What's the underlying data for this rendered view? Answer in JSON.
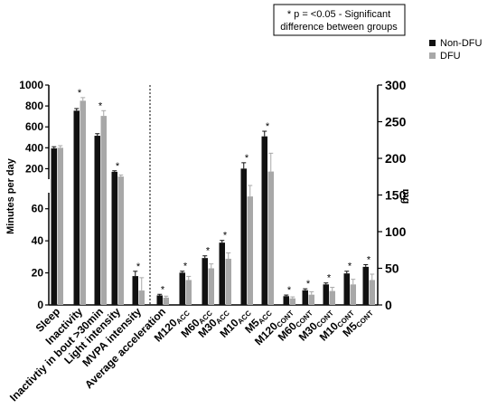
{
  "chart_data": {
    "type": "bar",
    "note_lines": [
      "* p = <0.05 - Significant",
      "difference between groups"
    ],
    "legend": [
      "Non-DFU",
      "DFU"
    ],
    "colors": {
      "Non-DFU": "#111111",
      "DFU": "#a8a8a8"
    },
    "legend_placement": "top-right",
    "ylabel_left": "Minutes per day",
    "ylabel_right": "mg",
    "left_axis": {
      "broken": true,
      "upper_ticks": [
        "200",
        "400",
        "600",
        "800",
        "1000"
      ],
      "lower_ticks": [
        "0",
        "20",
        "40",
        "60"
      ],
      "upper_range": [
        100,
        1000
      ],
      "lower_range": [
        0,
        70
      ]
    },
    "right_axis": {
      "ticks": [
        "0",
        "50",
        "100",
        "150",
        "200",
        "250",
        "300"
      ],
      "range": [
        0,
        300
      ]
    },
    "left_series": {
      "categories": [
        "Sleep",
        "Inactivity",
        "Inactivtiy in bout >30min",
        "Light intensity",
        "MVPA intensity"
      ],
      "non_dfu": [
        395,
        755,
        515,
        170,
        18
      ],
      "dfu": [
        400,
        850,
        705,
        125,
        9
      ],
      "non_dfu_err": [
        15,
        20,
        20,
        10,
        3
      ],
      "dfu_err": [
        20,
        30,
        50,
        15,
        8
      ],
      "significant": [
        false,
        true,
        true,
        true,
        true
      ]
    },
    "right_series": {
      "categories": [
        {
          "main": "Average acceleration",
          "sub": ""
        },
        {
          "main": "M120",
          "sub": "ACC"
        },
        {
          "main": "M60",
          "sub": "ACC"
        },
        {
          "main": "M30",
          "sub": "ACC"
        },
        {
          "main": "M10",
          "sub": "ACC"
        },
        {
          "main": "M5",
          "sub": "ACC"
        },
        {
          "main": "M120",
          "sub": "CONT"
        },
        {
          "main": "M60",
          "sub": "CONT"
        },
        {
          "main": "M30",
          "sub": "CONT"
        },
        {
          "main": "M10",
          "sub": "CONT"
        },
        {
          "main": "M5",
          "sub": "CONT"
        }
      ],
      "non_dfu": [
        13,
        44,
        64,
        85,
        186,
        230,
        12,
        20,
        28,
        43,
        52
      ],
      "dfu": [
        10,
        34,
        50,
        63,
        148,
        182,
        9,
        14,
        19,
        28,
        34
      ],
      "non_dfu_err": [
        1.5,
        2,
        3,
        3,
        8,
        7,
        1.5,
        2,
        2,
        3,
        3
      ],
      "dfu_err": [
        2,
        5,
        6,
        8,
        15,
        25,
        2,
        4,
        5,
        7,
        8
      ],
      "significant": [
        true,
        true,
        true,
        true,
        true,
        true,
        true,
        true,
        true,
        true,
        true
      ]
    }
  }
}
